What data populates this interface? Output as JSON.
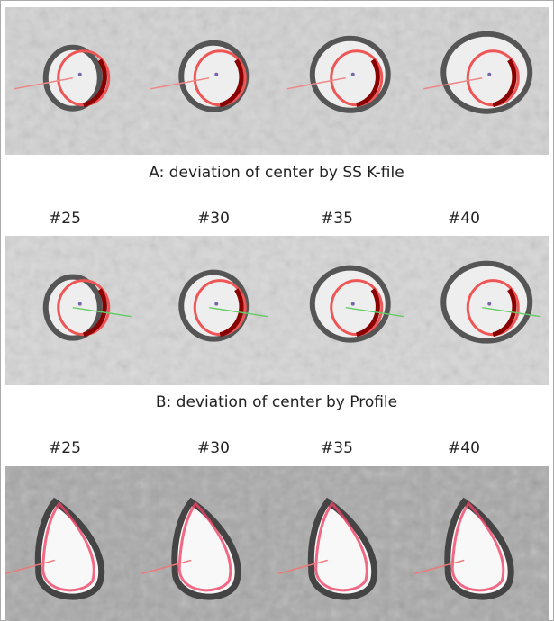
{
  "captions": [
    "A: deviation of center by SS K-file",
    "B: deviation of center by Profile"
  ],
  "label_rows": [
    [
      "#25",
      "#30",
      "#35",
      "#40"
    ],
    [
      "#25",
      "#30",
      "#35",
      "#40"
    ]
  ]
}
